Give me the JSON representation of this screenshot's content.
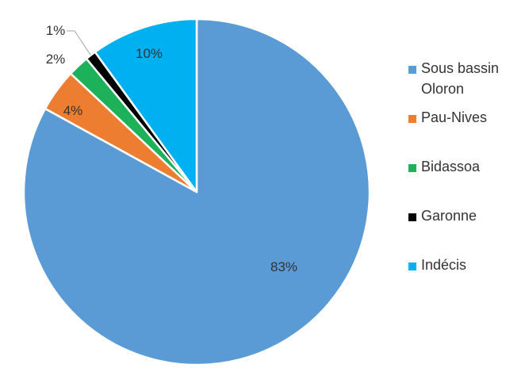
{
  "chart_data": {
    "type": "pie",
    "title": "",
    "slices": [
      {
        "label": "Sous bassin Oloron",
        "value": 83,
        "display": "83%",
        "color": "#5B9BD5",
        "legend_lines": [
          "Sous bassin",
          "Oloron"
        ]
      },
      {
        "label": "Pau-Nives",
        "value": 4,
        "display": "4%",
        "color": "#ED7D31",
        "legend_lines": [
          "Pau-Nives"
        ]
      },
      {
        "label": "Bidassoa",
        "value": 2,
        "display": "2%",
        "color": "#1DB15A",
        "legend_lines": [
          "Bidassoa"
        ]
      },
      {
        "label": "Garonne",
        "value": 1,
        "display": "1%",
        "color": "#000000",
        "legend_lines": [
          "Garonne"
        ]
      },
      {
        "label": "Indécis",
        "value": 10,
        "display": "10%",
        "color": "#00B0F0",
        "legend_lines": [
          "Indécis"
        ]
      }
    ],
    "start_angle_deg": 0,
    "direction": "clockwise",
    "legend_position": "right"
  }
}
